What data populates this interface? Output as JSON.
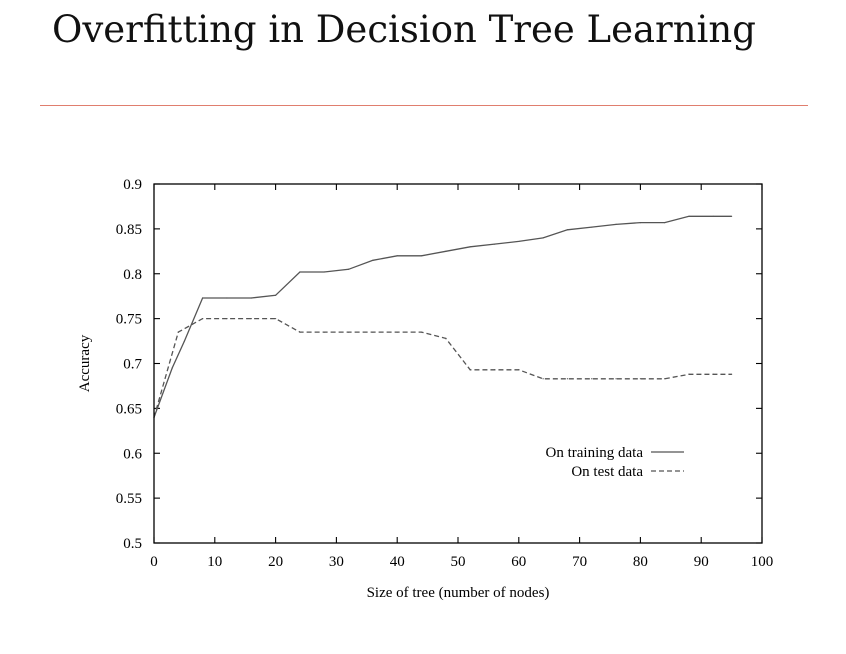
{
  "slide": {
    "title": "Overfitting in Decision Tree Learning",
    "rule_color": "#e07e6e"
  },
  "chart_data": {
    "type": "line",
    "title": "",
    "xlabel": "Size of tree (number of nodes)",
    "ylabel": "Accuracy",
    "xlim": [
      0,
      100
    ],
    "ylim": [
      0.5,
      0.9
    ],
    "xticks": [
      0,
      10,
      20,
      30,
      40,
      50,
      60,
      70,
      80,
      90,
      100
    ],
    "yticks": [
      0.5,
      0.55,
      0.6,
      0.65,
      0.7,
      0.75,
      0.8,
      0.85,
      0.9
    ],
    "grid": false,
    "legend_position": "lower-right",
    "series": [
      {
        "name": "On training data",
        "style": "solid",
        "color": "#555555",
        "x": [
          0,
          3,
          5,
          8,
          12,
          16,
          20,
          24,
          28,
          32,
          36,
          40,
          44,
          48,
          52,
          56,
          60,
          64,
          68,
          72,
          76,
          80,
          84,
          88,
          92,
          95
        ],
        "y": [
          0.64,
          0.695,
          0.725,
          0.773,
          0.773,
          0.773,
          0.776,
          0.802,
          0.802,
          0.805,
          0.815,
          0.82,
          0.82,
          0.825,
          0.83,
          0.833,
          0.836,
          0.84,
          0.849,
          0.852,
          0.855,
          0.857,
          0.857,
          0.864,
          0.864,
          0.864
        ]
      },
      {
        "name": "On test data",
        "style": "dashed",
        "color": "#555555",
        "x": [
          0,
          4,
          8,
          12,
          16,
          20,
          24,
          28,
          32,
          36,
          40,
          44,
          48,
          52,
          56,
          60,
          64,
          68,
          72,
          76,
          80,
          84,
          88,
          92,
          95
        ],
        "y": [
          0.64,
          0.735,
          0.75,
          0.75,
          0.75,
          0.75,
          0.735,
          0.735,
          0.735,
          0.735,
          0.735,
          0.735,
          0.728,
          0.693,
          0.693,
          0.693,
          0.683,
          0.683,
          0.683,
          0.683,
          0.683,
          0.683,
          0.688,
          0.688,
          0.688
        ]
      }
    ]
  }
}
